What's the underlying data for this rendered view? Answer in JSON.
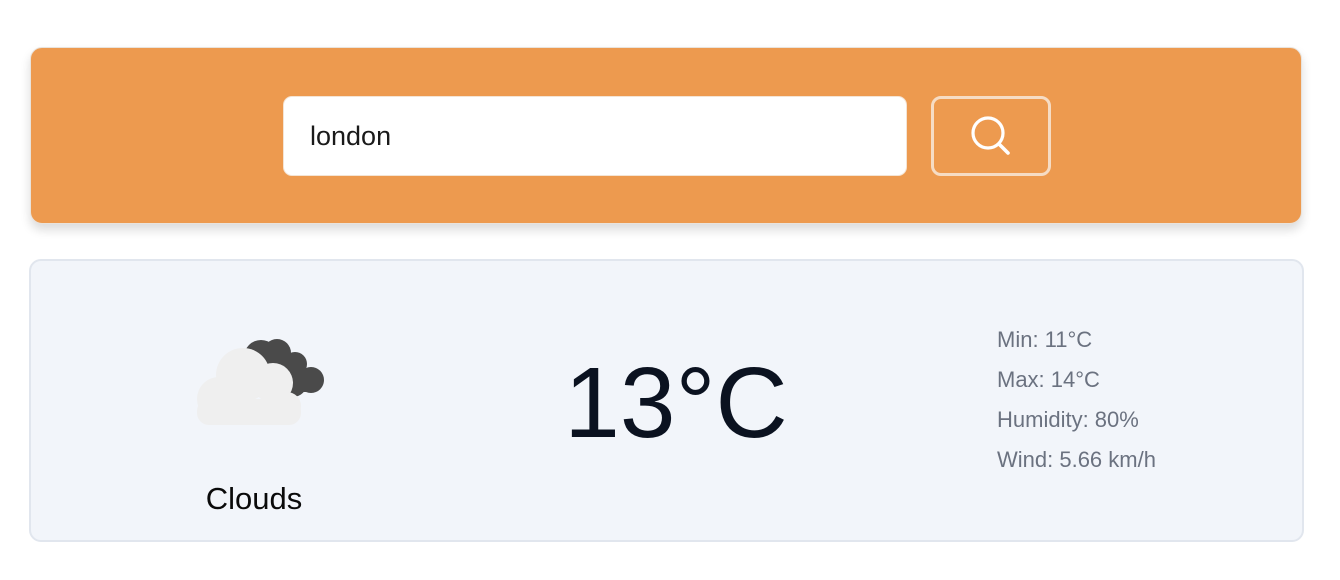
{
  "search": {
    "value": "london",
    "button_icon": "search-icon"
  },
  "colors": {
    "search_bar_bg": "#ed9a4f",
    "weather_card_bg": "#f2f5fa"
  },
  "weather": {
    "icon": "cloud-icon",
    "condition": "Clouds",
    "temperature": "13°C",
    "details": {
      "min": "Min: 11°C",
      "max": "Max: 14°C",
      "humidity": "Humidity: 80%",
      "wind": "Wind: 5.66 km/h"
    }
  }
}
